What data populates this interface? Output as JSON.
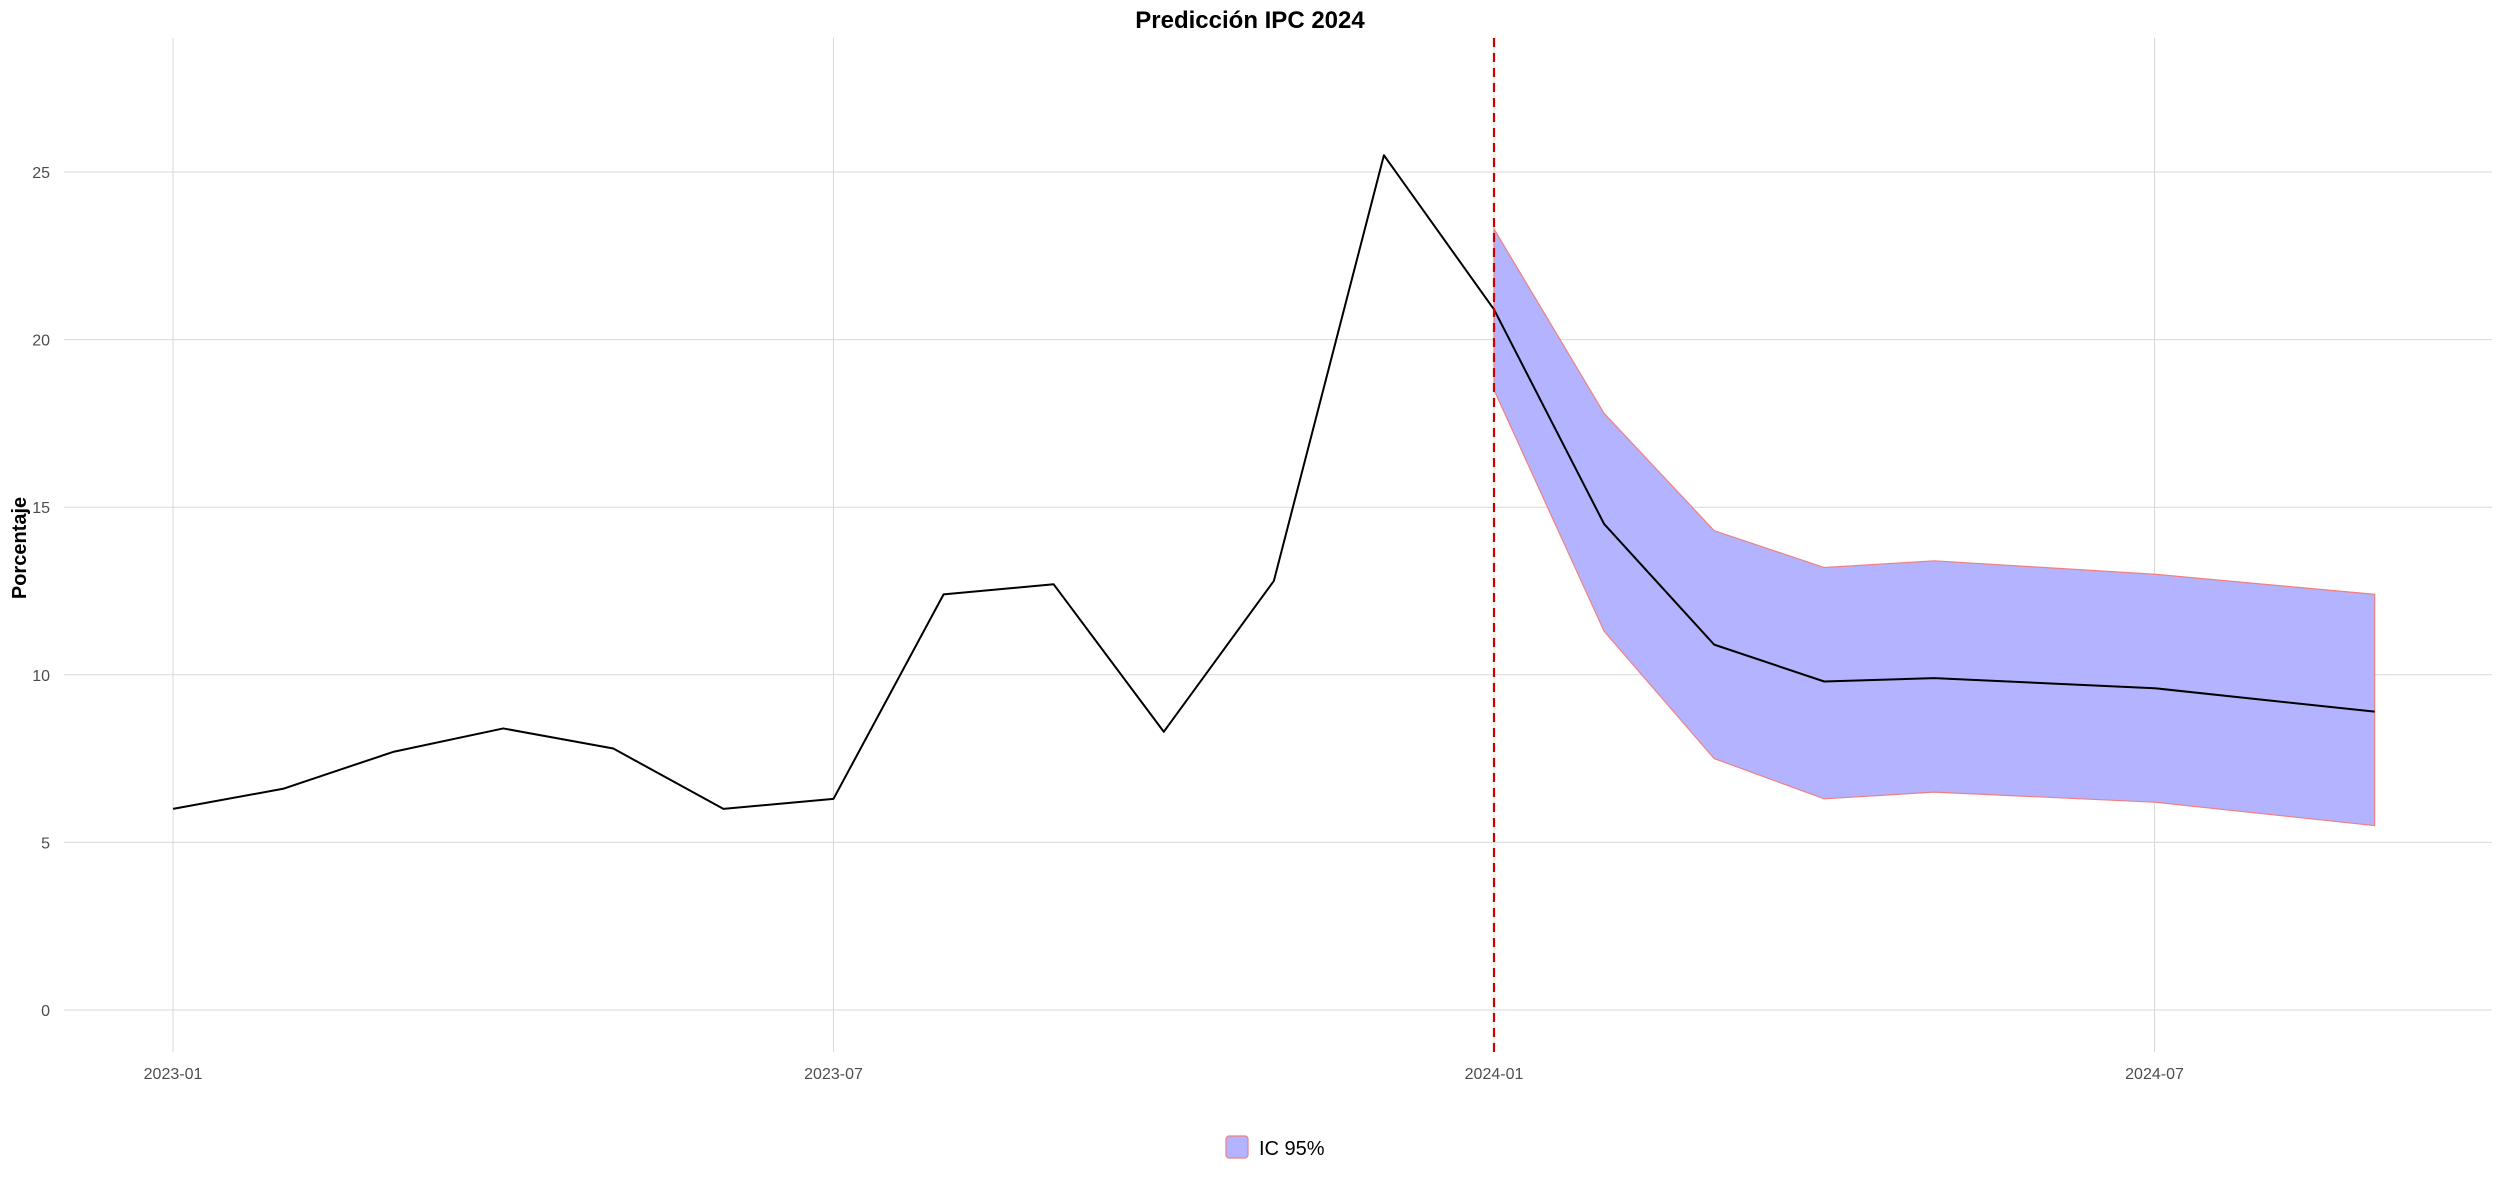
{
  "chart_data": {
    "type": "line",
    "title": "Predicción IPC 2024",
    "xlabel": "",
    "ylabel": "Porcentaje",
    "x_ticks": [
      "2023-01",
      "2023-07",
      "2024-01",
      "2024-07"
    ],
    "y_ticks": [
      0,
      5,
      10,
      15,
      20,
      25
    ],
    "ylim": [
      -2,
      29
    ],
    "grid": true,
    "legend_position": "bottom",
    "forecast_start": "2024-01",
    "observed": {
      "x": [
        "2023-01",
        "2023-02",
        "2023-03",
        "2023-04",
        "2023-05",
        "2023-06",
        "2023-07",
        "2023-08",
        "2023-09",
        "2023-10",
        "2023-11",
        "2023-12",
        "2024-01"
      ],
      "values": [
        6.0,
        6.6,
        7.7,
        8.4,
        7.8,
        6.0,
        6.3,
        12.4,
        12.7,
        8.3,
        12.8,
        25.5,
        20.9
      ]
    },
    "forecast": {
      "x": [
        "2024-01",
        "2024-02",
        "2024-03",
        "2024-04",
        "2024-05",
        "2024-07",
        "2024-09"
      ],
      "values": [
        20.9,
        14.5,
        10.9,
        9.8,
        9.9,
        9.6,
        8.9
      ],
      "lower": [
        18.5,
        11.3,
        7.5,
        6.3,
        6.5,
        6.2,
        5.5
      ],
      "upper": [
        23.3,
        17.8,
        14.3,
        13.2,
        13.4,
        13.0,
        12.4
      ]
    },
    "legend": [
      {
        "label": "IC 95%"
      }
    ],
    "colors": {
      "line": "#000000",
      "band_fill": "#b3b3ff",
      "band_stroke": "#f08080",
      "vline": "#cc0000",
      "grid": "#d9d9d9",
      "tick_text": "#4d4d4d"
    }
  }
}
